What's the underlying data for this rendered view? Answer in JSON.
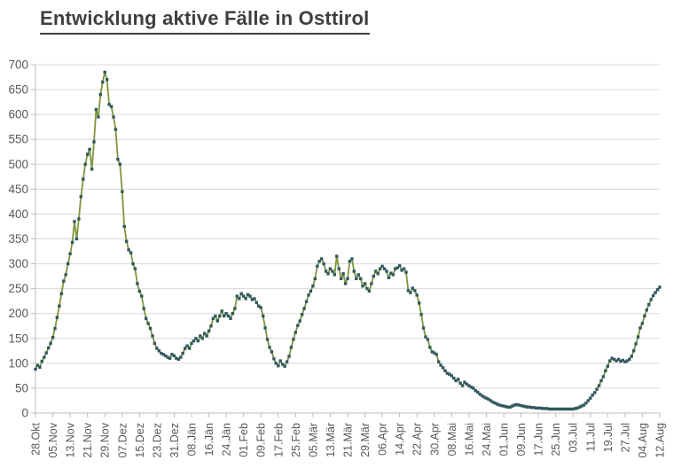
{
  "title": "Entwicklung aktive Fälle in Osttirol",
  "chart_data": {
    "type": "line",
    "title": "Entwicklung aktive Fälle in Osttirol",
    "xlabel": "",
    "ylabel": "",
    "ylim": [
      0,
      700
    ],
    "y_tick_step": 50,
    "y_tick_labels": [
      "0",
      "50",
      "100",
      "150",
      "200",
      "250",
      "300",
      "350",
      "400",
      "450",
      "500",
      "550",
      "600",
      "650",
      "700"
    ],
    "grid": "horizontal",
    "legend_position": "none",
    "marker_shape": "square",
    "x_tick_interval_days": 8,
    "x_tick_labels": [
      "28.Okt",
      "05.Nov",
      "13.Nov",
      "21.Nov",
      "29.Nov",
      "07.Dez",
      "15.Dez",
      "23.Dez",
      "31.Dez",
      "08.Jän",
      "16.Jän",
      "24.Jän",
      "01.Feb",
      "09.Feb",
      "17.Feb",
      "25.Feb",
      "05.Mär",
      "13.Mär",
      "21.Mär",
      "29.Mär",
      "06.Apr",
      "14.Apr",
      "22.Apr",
      "30.Apr",
      "08.Mai",
      "16.Mai",
      "24.Mai",
      "01.Jun",
      "09.Jun",
      "17.Jun",
      "25.Jun",
      "03.Jul",
      "11.Jul",
      "19.Jul",
      "27.Jul",
      "04.Aug",
      "12.Aug"
    ],
    "values": [
      88,
      96,
      92,
      104,
      112,
      121,
      131,
      140,
      152,
      170,
      192,
      215,
      240,
      265,
      278,
      300,
      320,
      343,
      385,
      350,
      390,
      435,
      470,
      500,
      520,
      530,
      490,
      545,
      610,
      595,
      640,
      665,
      685,
      670,
      620,
      616,
      595,
      570,
      510,
      500,
      445,
      375,
      345,
      328,
      322,
      300,
      290,
      260,
      245,
      235,
      210,
      190,
      180,
      170,
      155,
      140,
      130,
      125,
      120,
      118,
      115,
      112,
      110,
      118,
      115,
      110,
      108,
      112,
      120,
      130,
      135,
      130,
      140,
      145,
      150,
      145,
      155,
      150,
      160,
      155,
      165,
      175,
      190,
      195,
      185,
      195,
      205,
      195,
      200,
      195,
      190,
      200,
      210,
      235,
      230,
      240,
      235,
      230,
      238,
      235,
      228,
      230,
      222,
      215,
      212,
      195,
      171,
      148,
      132,
      123,
      109,
      100,
      95,
      105,
      98,
      94,
      103,
      114,
      132,
      148,
      162,
      176,
      185,
      198,
      210,
      224,
      237,
      245,
      255,
      270,
      295,
      305,
      310,
      300,
      285,
      280,
      290,
      285,
      278,
      315,
      290,
      270,
      280,
      260,
      270,
      305,
      310,
      285,
      270,
      278,
      270,
      255,
      260,
      250,
      245,
      260,
      275,
      285,
      280,
      290,
      295,
      290,
      285,
      272,
      281,
      278,
      290,
      292,
      296,
      287,
      290,
      283,
      246,
      242,
      251,
      246,
      237,
      221,
      198,
      171,
      153,
      148,
      132,
      123,
      121,
      118,
      103,
      96,
      91,
      85,
      80,
      78,
      75,
      70,
      65,
      68,
      60,
      55,
      62,
      58,
      55,
      52,
      50,
      45,
      42,
      38,
      35,
      32,
      30,
      28,
      25,
      22,
      20,
      18,
      16,
      15,
      14,
      13,
      12,
      12,
      14,
      16,
      17,
      16,
      15,
      14,
      13,
      12,
      12,
      11,
      11,
      10,
      10,
      10,
      9,
      9,
      9,
      8,
      8,
      8,
      8,
      8,
      8,
      8,
      8,
      8,
      8,
      8,
      8,
      9,
      10,
      12,
      14,
      16,
      20,
      25,
      30,
      36,
      41,
      48,
      55,
      65,
      73,
      85,
      94,
      105,
      110,
      108,
      105,
      108,
      104,
      106,
      103,
      105,
      108,
      114,
      125,
      139,
      153,
      171,
      180,
      195,
      207,
      218,
      228,
      236,
      242,
      248,
      253
    ],
    "colors": {
      "line": "#7e963b",
      "marker": "#31595f",
      "grid": "#d9d9d9",
      "axis": "#bfbfbf",
      "tick_label": "#595959",
      "title": "#3f3f3f"
    }
  }
}
